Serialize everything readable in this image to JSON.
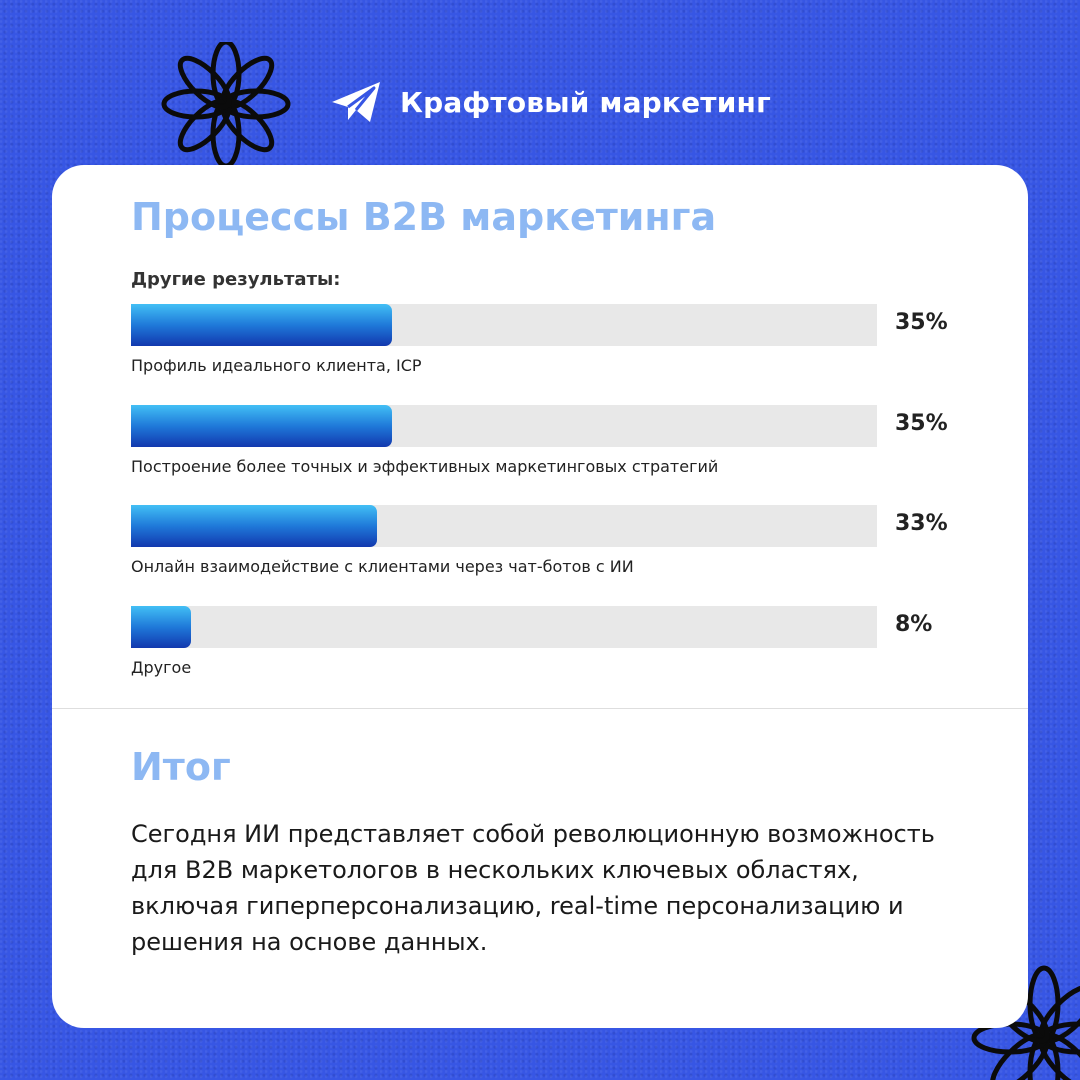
{
  "brand": {
    "name": "Крафтовый маркетинг",
    "icon": "paper-plane-icon"
  },
  "card": {
    "title": "Процессы B2B маркетинга",
    "subtitle": "Другие результаты:"
  },
  "chart_data": {
    "type": "bar",
    "orientation": "horizontal",
    "categories": [
      "Профиль идеального клиента, ICP",
      "Построение более точных и эффективных маркетинговых стратегий",
      "Онлайн взаимодействие с клиентами через чат-ботов с ИИ",
      "Другое"
    ],
    "values": [
      35,
      35,
      33,
      8
    ],
    "value_labels": [
      "35%",
      "35%",
      "33%",
      "8%"
    ],
    "xlim": [
      0,
      100
    ],
    "grid": false,
    "legend": "none",
    "colors": {
      "fill_top": "#42bff5",
      "fill_bottom": "#1238ae",
      "track": "#e8e8e8",
      "title": "#8db8f3",
      "background": "#3756e4"
    }
  },
  "summary": {
    "title": "Итог",
    "text": "Сегодня ИИ представляет собой революционную возможность для B2B маркетологов в нескольких ключевых областях, включая гиперперсонализацию, real-time персонализацию и решения на основе данных."
  }
}
